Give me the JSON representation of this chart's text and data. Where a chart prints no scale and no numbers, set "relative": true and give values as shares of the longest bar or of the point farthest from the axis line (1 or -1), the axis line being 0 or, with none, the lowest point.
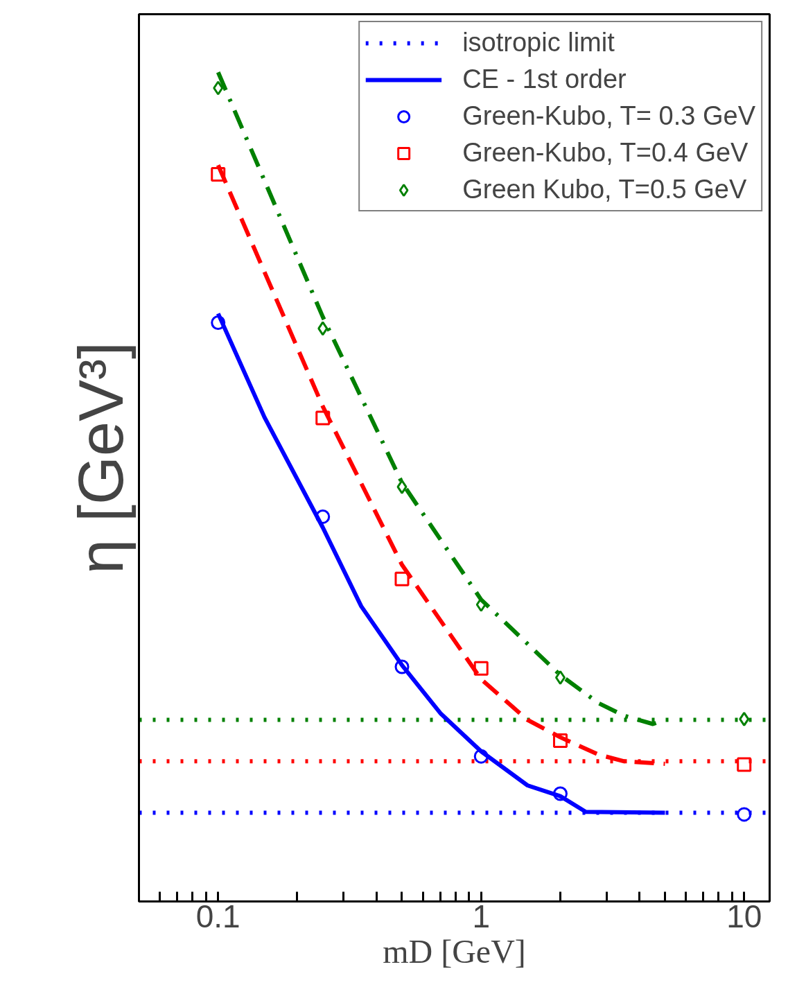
{
  "chart_data": {
    "type": "line",
    "relative": true,
    "log": "x",
    "xlabel": "mD [GeV]",
    "ylabel": "η [GeV³]",
    "xlim": [
      0.05,
      12.5
    ],
    "xticks": [
      0.1,
      1,
      10
    ],
    "legend": "top right",
    "grid": false,
    "series": [
      {
        "name": "isotropic limit",
        "color": "#0000ff",
        "line_style": "dotted",
        "x": [
          0.05,
          12.5
        ],
        "values": [
          0.107,
          0.107
        ]
      },
      {
        "color": "#ff0000",
        "line_style": "dotted",
        "x": [
          0.05,
          12.5
        ],
        "values": [
          0.169,
          0.169
        ]
      },
      {
        "color": "#008000",
        "line_style": "dotted",
        "x": [
          0.05,
          12.5
        ],
        "values": [
          0.219,
          0.219
        ]
      },
      {
        "name": "CE - 1st order",
        "color": "#0000ff",
        "line_style": "solid",
        "x": [
          0.1,
          0.15,
          0.25,
          0.35,
          0.5,
          0.7,
          1,
          1.5,
          2,
          2.5,
          5
        ],
        "values": [
          0.709,
          0.584,
          0.451,
          0.356,
          0.285,
          0.227,
          0.181,
          0.14,
          0.127,
          0.108,
          0.107
        ]
      },
      {
        "color": "#ff0000",
        "line_style": "dashed",
        "x": [
          0.1,
          0.25,
          0.5,
          1,
          1.5,
          2,
          2.8,
          3.5,
          5
        ],
        "values": [
          0.888,
          0.597,
          0.406,
          0.268,
          0.219,
          0.198,
          0.177,
          0.169,
          0.166
        ]
      },
      {
        "color": "#008000",
        "line_style": "dashdot",
        "x": [
          0.1,
          0.25,
          0.5,
          1,
          2,
          2.8,
          3.5,
          4.5,
          5
        ],
        "values": [
          1.0,
          0.705,
          0.505,
          0.364,
          0.273,
          0.239,
          0.224,
          0.214,
          0.219
        ]
      },
      {
        "name": "Green-Kubo, T= 0.3 GeV",
        "type": "scatter",
        "marker": "circle",
        "color": "#0000ff",
        "x": [
          0.1,
          0.25,
          0.5,
          1,
          2,
          10
        ],
        "values": [
          0.698,
          0.464,
          0.283,
          0.175,
          0.13,
          0.105
        ]
      },
      {
        "name": "Green-Kubo, T=0.4 GeV",
        "type": "scatter",
        "marker": "square",
        "color": "#ff0000",
        "x": [
          0.1,
          0.25,
          0.5,
          1,
          2,
          10
        ],
        "values": [
          0.877,
          0.583,
          0.389,
          0.281,
          0.194,
          0.165
        ]
      },
      {
        "name": "Green Kubo, T=0.5 GeV",
        "type": "scatter",
        "marker": "diamond",
        "color": "#008000",
        "x": [
          0.1,
          0.25,
          0.5,
          1,
          2,
          10
        ],
        "values": [
          0.981,
          0.691,
          0.5,
          0.358,
          0.27,
          0.22
        ]
      }
    ]
  }
}
